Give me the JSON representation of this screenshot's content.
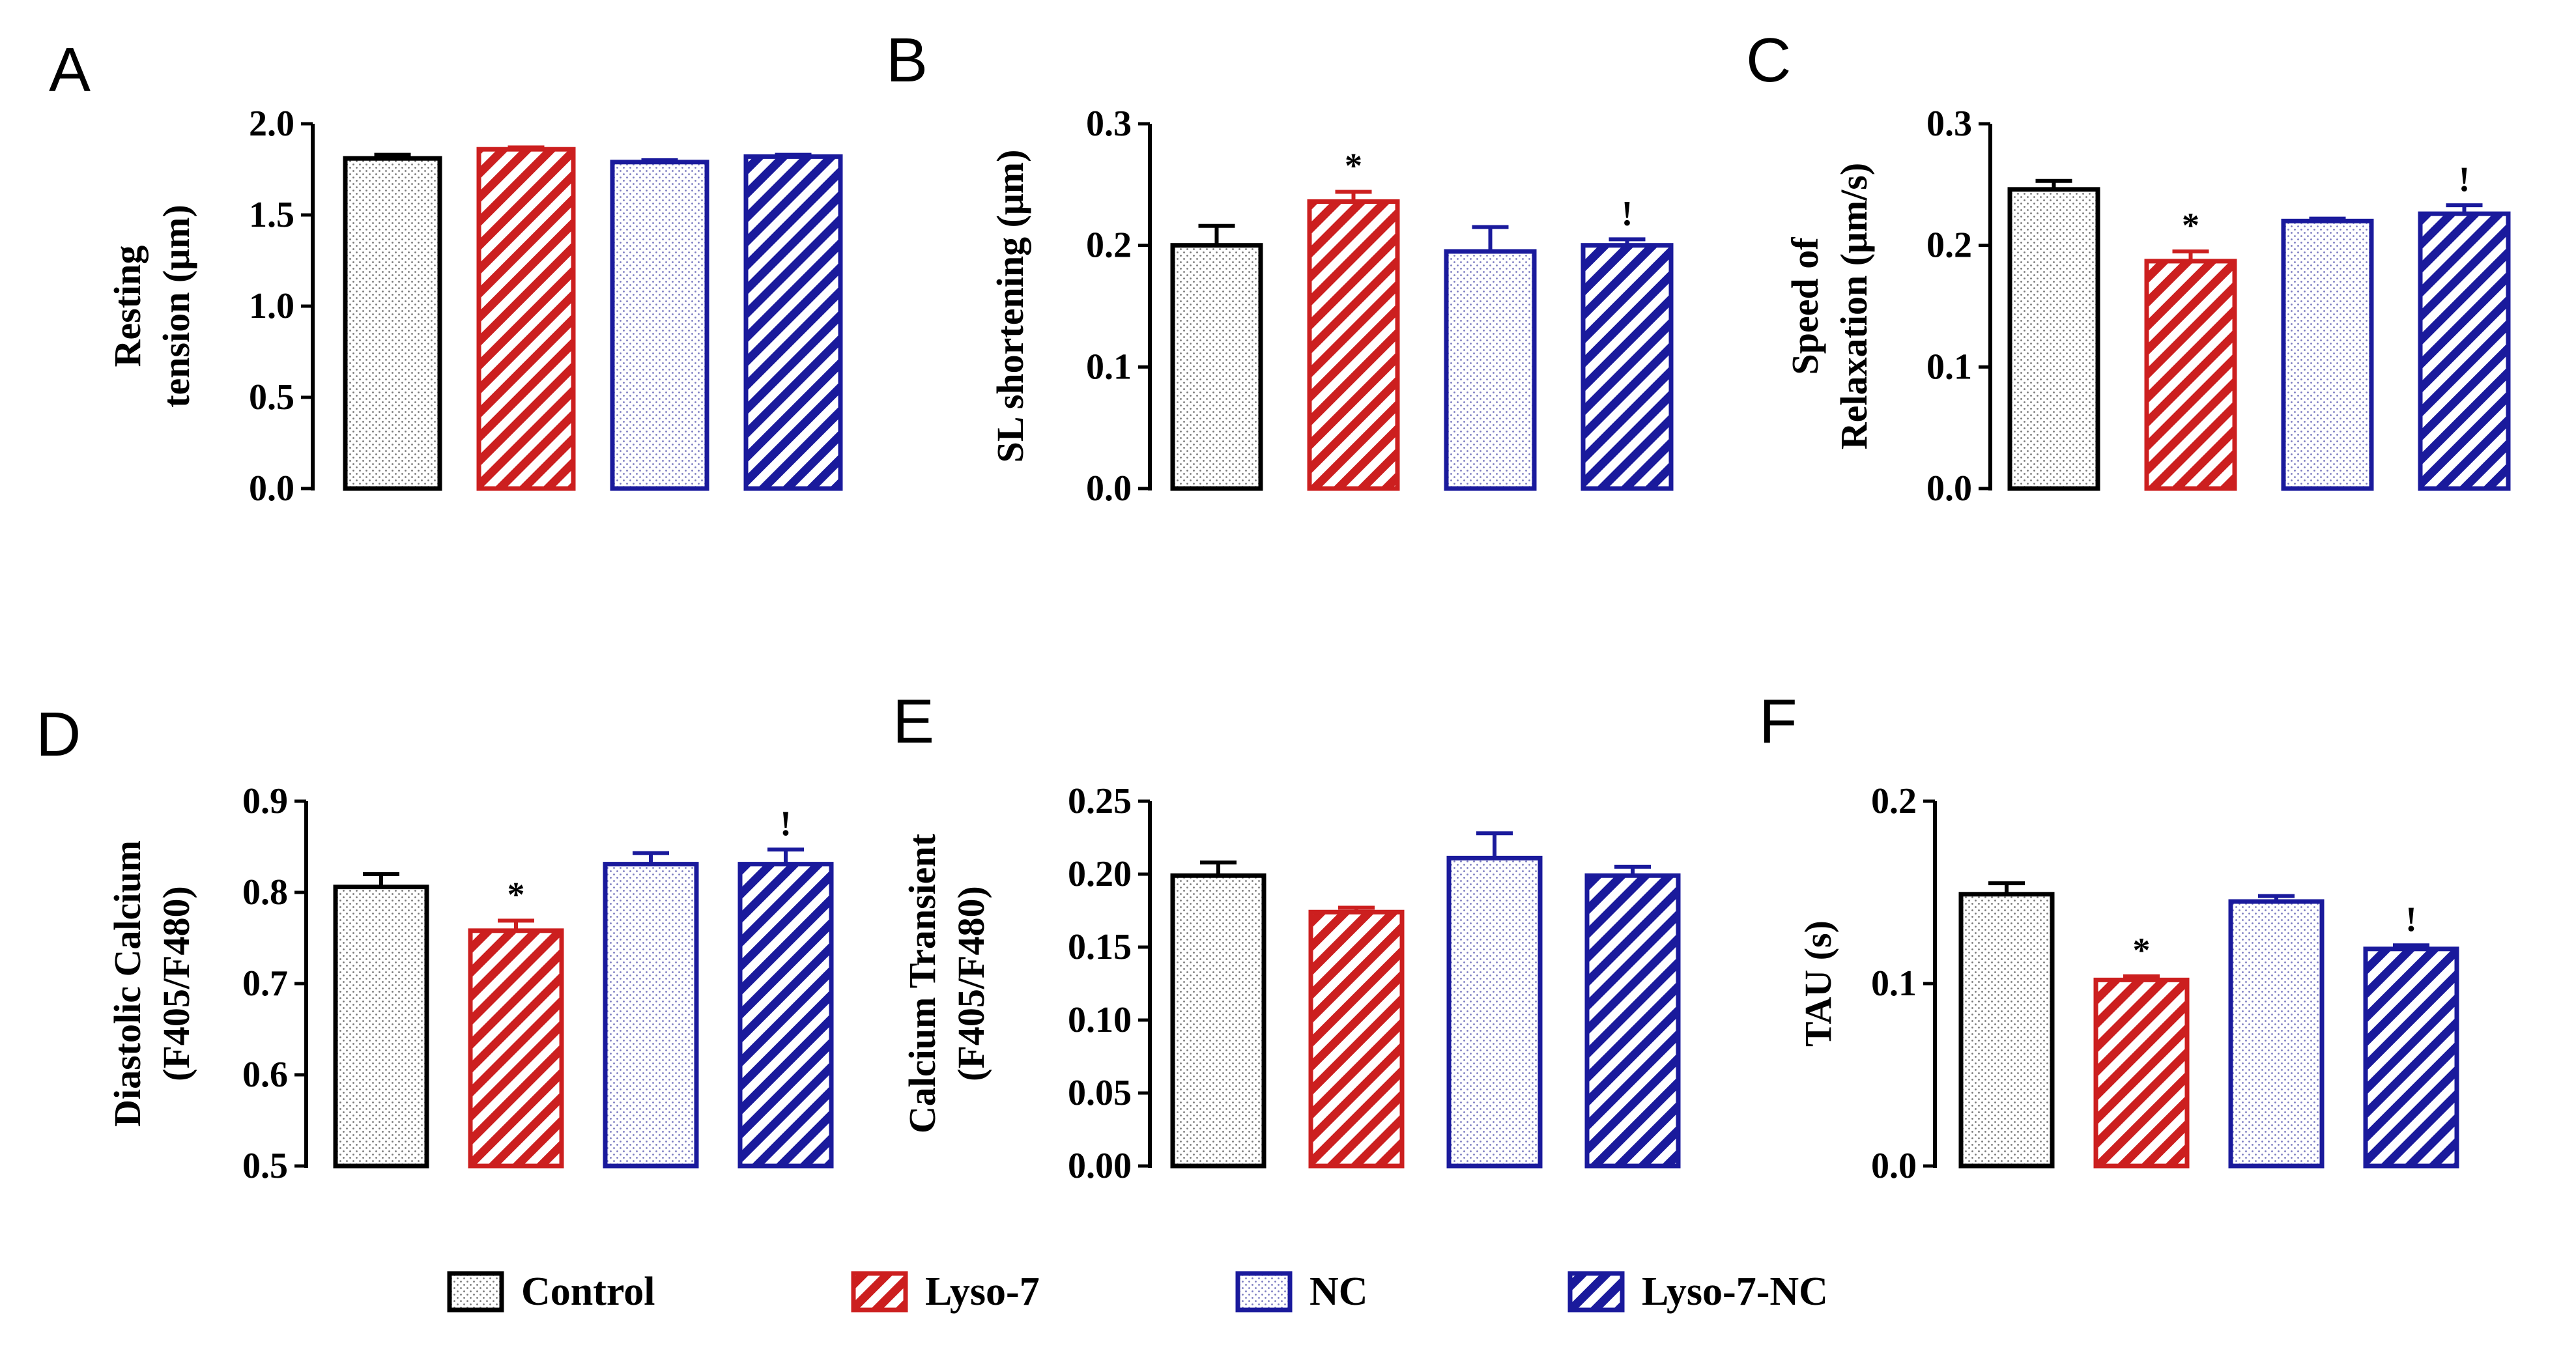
{
  "legend": [
    {
      "label": "Control",
      "color": "#000000",
      "pattern": "dots"
    },
    {
      "label": "Lyso-7",
      "color": "#cc1f1f",
      "pattern": "hatch"
    },
    {
      "label": "NC",
      "color": "#1a1a9c",
      "pattern": "dots"
    },
    {
      "label": "Lyso-7-NC",
      "color": "#1a1a9c",
      "pattern": "hatch"
    }
  ],
  "chart_data": [
    {
      "type": "bar",
      "panel": "A",
      "ylabel": [
        "Resting",
        "tension (μm)"
      ],
      "ylim": [
        0,
        2.0
      ],
      "ticks": [
        "0.0",
        "0.5",
        "1.0",
        "1.5",
        "2.0"
      ],
      "categories": [
        "Control",
        "Lyso-7",
        "NC",
        "Lyso-7-NC"
      ],
      "values": [
        1.81,
        1.86,
        1.79,
        1.82
      ],
      "errors": [
        0.02,
        0.01,
        0.01,
        0.01
      ],
      "annotations": [
        "",
        "",
        "",
        ""
      ]
    },
    {
      "type": "bar",
      "panel": "B",
      "ylabel": [
        "SL shortening (μm)"
      ],
      "ylim": [
        0,
        0.3
      ],
      "ticks": [
        "0.0",
        "0.1",
        "0.2",
        "0.3"
      ],
      "categories": [
        "Control",
        "Lyso-7",
        "NC",
        "Lyso-7-NC"
      ],
      "values": [
        0.2,
        0.236,
        0.195,
        0.2
      ],
      "errors": [
        0.016,
        0.008,
        0.02,
        0.005
      ],
      "annotations": [
        "",
        "*",
        "",
        "!"
      ]
    },
    {
      "type": "bar",
      "panel": "C",
      "ylabel": [
        "Speed of",
        "Relaxation (μm/s)"
      ],
      "ylim": [
        0,
        0.3
      ],
      "ticks": [
        "0.0",
        "0.1",
        "0.2",
        "0.3"
      ],
      "categories": [
        "Control",
        "Lyso-7",
        "NC",
        "Lyso-7-NC"
      ],
      "values": [
        0.246,
        0.187,
        0.22,
        0.226
      ],
      "errors": [
        0.007,
        0.008,
        0.002,
        0.007
      ],
      "annotations": [
        "",
        "*",
        "",
        "!"
      ]
    },
    {
      "type": "bar",
      "panel": "D",
      "ylabel": [
        "Diastolic Calcium",
        "(F405/F480)"
      ],
      "ylim": [
        0.5,
        0.9
      ],
      "ticks": [
        "0.5",
        "0.6",
        "0.7",
        "0.8",
        "0.9"
      ],
      "categories": [
        "Control",
        "Lyso-7",
        "NC",
        "Lyso-7-NC"
      ],
      "values": [
        0.806,
        0.758,
        0.831,
        0.831
      ],
      "errors": [
        0.014,
        0.011,
        0.012,
        0.016
      ],
      "annotations": [
        "",
        "*",
        "",
        "!"
      ]
    },
    {
      "type": "bar",
      "panel": "E",
      "ylabel": [
        "Calcium Transient",
        "(F405/F480)"
      ],
      "ylim": [
        0,
        0.25
      ],
      "ticks": [
        "0.00",
        "0.05",
        "0.10",
        "0.15",
        "0.20",
        "0.25"
      ],
      "categories": [
        "Control",
        "Lyso-7",
        "NC",
        "Lyso-7-NC"
      ],
      "values": [
        0.199,
        0.174,
        0.211,
        0.199
      ],
      "errors": [
        0.009,
        0.003,
        0.017,
        0.006
      ],
      "annotations": [
        "",
        "",
        "",
        ""
      ]
    },
    {
      "type": "bar",
      "panel": "F",
      "ylabel": [
        "TAU (s)"
      ],
      "ylim": [
        0,
        0.2
      ],
      "ticks": [
        "0.0",
        "0.1",
        "0.2"
      ],
      "categories": [
        "Control",
        "Lyso-7",
        "NC",
        "Lyso-7-NC"
      ],
      "values": [
        0.149,
        0.102,
        0.145,
        0.119
      ],
      "errors": [
        0.006,
        0.002,
        0.003,
        0.002
      ],
      "annotations": [
        "",
        "*",
        "",
        "!"
      ]
    }
  ]
}
